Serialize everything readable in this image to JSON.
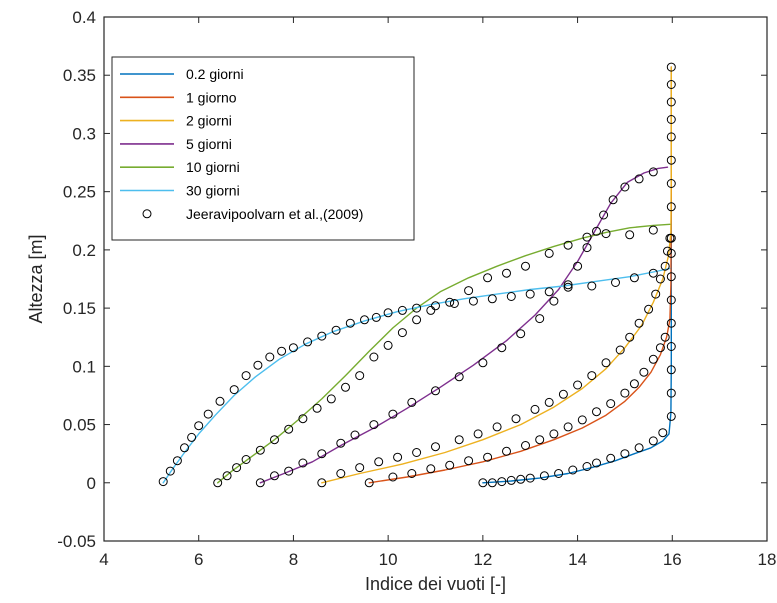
{
  "chart_data": {
    "type": "line",
    "title": "",
    "xlabel": "Indice dei vuoti [-]",
    "ylabel": "Altezza [m]",
    "xlim": [
      4,
      18
    ],
    "ylim": [
      -0.05,
      0.4
    ],
    "xticks": [
      4,
      6,
      8,
      10,
      12,
      14,
      16,
      18
    ],
    "yticks": [
      -0.05,
      0,
      0.05,
      0.1,
      0.15,
      0.2,
      0.25,
      0.3,
      0.35,
      0.4
    ],
    "ytick_labels": [
      "-0.05",
      "0",
      "0.05",
      "0.1",
      "0.15",
      "0.2",
      "0.25",
      "0.3",
      "0.35",
      "0.4"
    ],
    "grid": false,
    "legend_position": "top-left",
    "series": [
      {
        "name": "0.2 giorni",
        "color": "#0072BD",
        "x": [
          12.0,
          12.6,
          13.2,
          13.8,
          14.3,
          14.8,
          15.2,
          15.55,
          15.8,
          15.93,
          15.97,
          15.98,
          15.98,
          15.98,
          15.98,
          15.98
        ],
        "y": [
          0.0,
          0.0015,
          0.004,
          0.008,
          0.013,
          0.019,
          0.025,
          0.03,
          0.036,
          0.042,
          0.06,
          0.1,
          0.15,
          0.2,
          0.3,
          0.357
        ]
      },
      {
        "name": "1 giorno",
        "color": "#D95319",
        "x": [
          9.6,
          10.4,
          11.2,
          12.0,
          12.8,
          13.5,
          14.1,
          14.6,
          15.0,
          15.3,
          15.55,
          15.75,
          15.88,
          15.95,
          15.97,
          15.98,
          15.98
        ],
        "y": [
          0.0,
          0.005,
          0.011,
          0.018,
          0.027,
          0.037,
          0.047,
          0.058,
          0.07,
          0.082,
          0.095,
          0.11,
          0.125,
          0.14,
          0.17,
          0.25,
          0.357
        ]
      },
      {
        "name": "2 giorni",
        "color": "#EDB120",
        "x": [
          8.6,
          9.4,
          10.3,
          11.2,
          12.0,
          12.8,
          13.5,
          14.1,
          14.6,
          15.0,
          15.35,
          15.6,
          15.8,
          15.92,
          15.97,
          15.98,
          15.98
        ],
        "y": [
          0.0,
          0.008,
          0.016,
          0.026,
          0.037,
          0.05,
          0.065,
          0.081,
          0.098,
          0.116,
          0.135,
          0.155,
          0.175,
          0.195,
          0.215,
          0.27,
          0.357
        ]
      },
      {
        "name": "5 giorni",
        "color": "#7E2F8E",
        "x": [
          7.3,
          7.8,
          8.4,
          9.0,
          9.7,
          10.4,
          11.1,
          11.8,
          12.5,
          13.1,
          13.6,
          14.0,
          14.35,
          14.7,
          15.05,
          15.4,
          15.7,
          15.9
        ],
        "y": [
          0.0,
          0.008,
          0.018,
          0.032,
          0.047,
          0.064,
          0.082,
          0.101,
          0.122,
          0.144,
          0.166,
          0.19,
          0.215,
          0.24,
          0.258,
          0.266,
          0.27,
          0.271
        ]
      },
      {
        "name": "10 giorni",
        "color": "#77AC30",
        "x": [
          6.4,
          6.7,
          7.1,
          7.6,
          8.1,
          8.6,
          9.1,
          9.6,
          10.1,
          10.6,
          11.1,
          11.7,
          12.3,
          12.9,
          13.5,
          14.1,
          14.6,
          15.1,
          15.6,
          15.95
        ],
        "y": [
          0.0,
          0.01,
          0.022,
          0.037,
          0.054,
          0.072,
          0.092,
          0.113,
          0.133,
          0.15,
          0.164,
          0.176,
          0.186,
          0.195,
          0.203,
          0.21,
          0.215,
          0.219,
          0.221,
          0.222
        ]
      },
      {
        "name": "30 giorni",
        "color": "#4DBEEE",
        "x": [
          5.25,
          5.45,
          5.7,
          6.0,
          6.35,
          6.75,
          7.2,
          7.7,
          8.25,
          8.85,
          9.5,
          10.2,
          10.9,
          11.6,
          12.3,
          13.0,
          13.7,
          14.4,
          15.1,
          15.6,
          15.95
        ],
        "y": [
          0.0,
          0.012,
          0.026,
          0.042,
          0.058,
          0.075,
          0.091,
          0.106,
          0.119,
          0.13,
          0.139,
          0.147,
          0.153,
          0.158,
          0.162,
          0.166,
          0.169,
          0.173,
          0.177,
          0.181,
          0.184
        ]
      }
    ],
    "markers": {
      "name": "Jeeravipoolvarn et al.,(2009)",
      "color": "#000000",
      "points": [
        [
          12.0,
          0.0
        ],
        [
          12.2,
          0.0
        ],
        [
          12.4,
          0.001
        ],
        [
          12.6,
          0.002
        ],
        [
          12.8,
          0.003
        ],
        [
          13.0,
          0.004
        ],
        [
          13.3,
          0.006
        ],
        [
          13.6,
          0.008
        ],
        [
          13.9,
          0.011
        ],
        [
          14.2,
          0.014
        ],
        [
          14.4,
          0.017
        ],
        [
          14.7,
          0.021
        ],
        [
          15.0,
          0.025
        ],
        [
          15.3,
          0.03
        ],
        [
          15.6,
          0.036
        ],
        [
          15.8,
          0.043
        ],
        [
          15.98,
          0.057
        ],
        [
          15.98,
          0.077
        ],
        [
          15.98,
          0.097
        ],
        [
          15.98,
          0.117
        ],
        [
          15.98,
          0.137
        ],
        [
          15.98,
          0.157
        ],
        [
          15.98,
          0.177
        ],
        [
          15.98,
          0.197
        ],
        [
          15.98,
          0.21
        ],
        [
          15.98,
          0.237
        ],
        [
          15.98,
          0.257
        ],
        [
          15.98,
          0.277
        ],
        [
          15.98,
          0.297
        ],
        [
          15.98,
          0.312
        ],
        [
          15.98,
          0.327
        ],
        [
          15.98,
          0.342
        ],
        [
          15.98,
          0.357
        ],
        [
          9.6,
          0.0
        ],
        [
          10.1,
          0.005
        ],
        [
          10.5,
          0.008
        ],
        [
          10.9,
          0.012
        ],
        [
          11.3,
          0.015
        ],
        [
          11.7,
          0.019
        ],
        [
          12.1,
          0.022
        ],
        [
          12.5,
          0.027
        ],
        [
          12.9,
          0.032
        ],
        [
          13.2,
          0.037
        ],
        [
          13.5,
          0.042
        ],
        [
          13.8,
          0.048
        ],
        [
          14.1,
          0.054
        ],
        [
          14.4,
          0.061
        ],
        [
          14.7,
          0.068
        ],
        [
          15.0,
          0.077
        ],
        [
          15.2,
          0.085
        ],
        [
          15.4,
          0.095
        ],
        [
          15.6,
          0.106
        ],
        [
          15.75,
          0.116
        ],
        [
          15.85,
          0.125
        ],
        [
          8.6,
          0.0
        ],
        [
          9.0,
          0.008
        ],
        [
          9.4,
          0.013
        ],
        [
          9.8,
          0.018
        ],
        [
          10.2,
          0.022
        ],
        [
          10.6,
          0.026
        ],
        [
          11.0,
          0.031
        ],
        [
          11.5,
          0.037
        ],
        [
          11.9,
          0.042
        ],
        [
          12.3,
          0.048
        ],
        [
          12.7,
          0.055
        ],
        [
          13.1,
          0.063
        ],
        [
          13.4,
          0.069
        ],
        [
          13.7,
          0.076
        ],
        [
          14.0,
          0.084
        ],
        [
          14.3,
          0.092
        ],
        [
          14.6,
          0.103
        ],
        [
          14.9,
          0.114
        ],
        [
          15.1,
          0.125
        ],
        [
          15.3,
          0.137
        ],
        [
          15.5,
          0.149
        ],
        [
          15.65,
          0.162
        ],
        [
          15.75,
          0.175
        ],
        [
          15.85,
          0.186
        ],
        [
          15.9,
          0.199
        ],
        [
          15.95,
          0.21
        ],
        [
          7.3,
          0.0
        ],
        [
          7.6,
          0.006
        ],
        [
          7.9,
          0.01
        ],
        [
          8.2,
          0.017
        ],
        [
          8.6,
          0.025
        ],
        [
          9.0,
          0.034
        ],
        [
          9.3,
          0.041
        ],
        [
          9.7,
          0.05
        ],
        [
          10.1,
          0.059
        ],
        [
          10.5,
          0.069
        ],
        [
          11.0,
          0.079
        ],
        [
          11.5,
          0.091
        ],
        [
          12.0,
          0.103
        ],
        [
          12.4,
          0.116
        ],
        [
          12.8,
          0.128
        ],
        [
          13.2,
          0.141
        ],
        [
          13.5,
          0.156
        ],
        [
          13.8,
          0.17
        ],
        [
          14.0,
          0.186
        ],
        [
          14.2,
          0.202
        ],
        [
          14.4,
          0.216
        ],
        [
          14.55,
          0.23
        ],
        [
          14.75,
          0.243
        ],
        [
          15.0,
          0.254
        ],
        [
          15.3,
          0.261
        ],
        [
          15.6,
          0.267
        ],
        [
          6.4,
          0.0
        ],
        [
          6.6,
          0.006
        ],
        [
          6.8,
          0.013
        ],
        [
          7.0,
          0.02
        ],
        [
          7.3,
          0.028
        ],
        [
          7.6,
          0.037
        ],
        [
          7.9,
          0.046
        ],
        [
          8.2,
          0.055
        ],
        [
          8.5,
          0.064
        ],
        [
          8.8,
          0.072
        ],
        [
          9.1,
          0.082
        ],
        [
          9.4,
          0.092
        ],
        [
          9.7,
          0.108
        ],
        [
          10.0,
          0.118
        ],
        [
          10.3,
          0.129
        ],
        [
          10.6,
          0.14
        ],
        [
          10.9,
          0.148
        ],
        [
          11.3,
          0.155
        ],
        [
          11.7,
          0.165
        ],
        [
          12.1,
          0.176
        ],
        [
          12.5,
          0.18
        ],
        [
          12.9,
          0.186
        ],
        [
          13.4,
          0.197
        ],
        [
          13.8,
          0.204
        ],
        [
          14.2,
          0.211
        ],
        [
          14.6,
          0.214
        ],
        [
          15.1,
          0.213
        ],
        [
          15.6,
          0.217
        ],
        [
          5.25,
          0.001
        ],
        [
          5.4,
          0.01
        ],
        [
          5.55,
          0.019
        ],
        [
          5.7,
          0.03
        ],
        [
          5.85,
          0.039
        ],
        [
          6.0,
          0.049
        ],
        [
          6.2,
          0.059
        ],
        [
          6.45,
          0.07
        ],
        [
          6.75,
          0.08
        ],
        [
          7.0,
          0.092
        ],
        [
          7.25,
          0.101
        ],
        [
          7.5,
          0.108
        ],
        [
          7.75,
          0.113
        ],
        [
          8.0,
          0.116
        ],
        [
          8.3,
          0.121
        ],
        [
          8.6,
          0.126
        ],
        [
          8.9,
          0.131
        ],
        [
          9.2,
          0.137
        ],
        [
          9.5,
          0.14
        ],
        [
          9.75,
          0.142
        ],
        [
          10.0,
          0.146
        ],
        [
          10.3,
          0.148
        ],
        [
          10.6,
          0.15
        ],
        [
          11.0,
          0.152
        ],
        [
          11.4,
          0.154
        ],
        [
          11.8,
          0.156
        ],
        [
          12.2,
          0.158
        ],
        [
          12.6,
          0.16
        ],
        [
          13.0,
          0.162
        ],
        [
          13.4,
          0.164
        ],
        [
          13.8,
          0.168
        ],
        [
          14.3,
          0.169
        ],
        [
          14.8,
          0.172
        ],
        [
          15.2,
          0.176
        ],
        [
          15.6,
          0.18
        ]
      ]
    }
  }
}
